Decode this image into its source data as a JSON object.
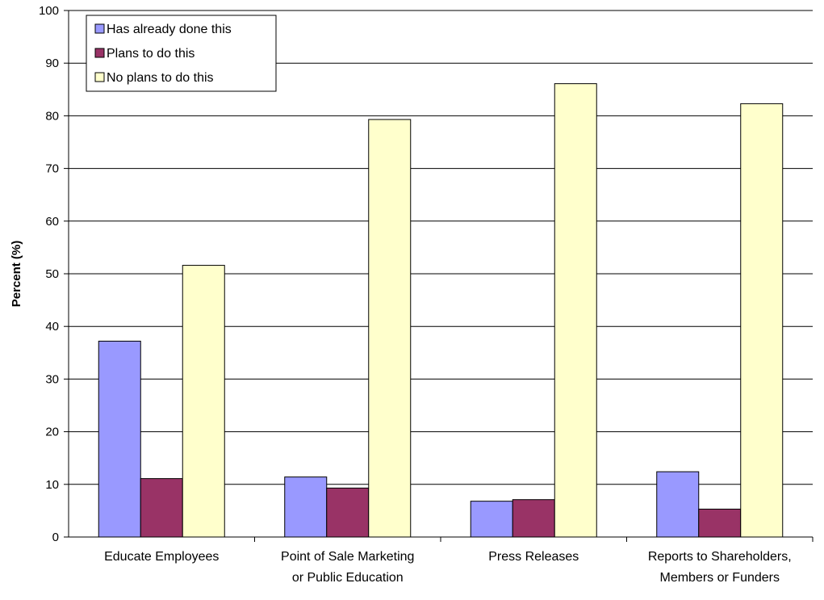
{
  "chart_data": {
    "type": "bar",
    "ylabel": "Percent (%)",
    "xlabel": "",
    "ylim": [
      0,
      100
    ],
    "yticks": [
      "0",
      "10",
      "20",
      "30",
      "40",
      "50",
      "60",
      "70",
      "80",
      "90",
      "100"
    ],
    "categories": [
      [
        "Educate Employees"
      ],
      [
        "Point of Sale Marketing",
        "or Public Education"
      ],
      [
        "Press Releases"
      ],
      [
        "Reports to Shareholders,",
        "Members or Funders"
      ]
    ],
    "series": [
      {
        "name": "Has already done this",
        "color": "#9999ff",
        "values": [
          37.2,
          11.4,
          6.8,
          12.4
        ]
      },
      {
        "name": "Plans to do this",
        "color": "#993366",
        "values": [
          11.1,
          9.3,
          7.1,
          5.3
        ]
      },
      {
        "name": "No plans to do this",
        "color": "#ffffcc",
        "values": [
          51.6,
          79.3,
          86.1,
          82.3
        ]
      }
    ],
    "grid": true,
    "legend_position": "top-left"
  }
}
